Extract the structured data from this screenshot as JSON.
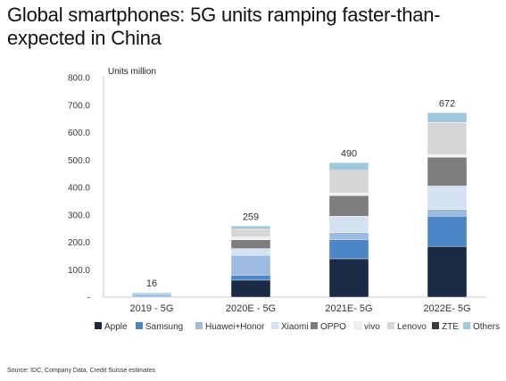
{
  "title": {
    "line1": "Global smartphones: 5G units ramping faster-than-",
    "line2": "expected in China"
  },
  "source": "Source: IDC, Company Data, Credit Suisse estimates",
  "chart_data": {
    "type": "bar",
    "stacked": true,
    "unit_label": "Units million",
    "categories": [
      "2019 - 5G",
      "2020E - 5G",
      "2021E- 5G",
      "2022E- 5G"
    ],
    "totals": [
      16,
      259,
      490,
      672
    ],
    "ylim": [
      0,
      800
    ],
    "yticks": [
      "-",
      "100.0",
      "200.0",
      "300.0",
      "400.0",
      "500.0",
      "600.0",
      "700.0",
      "800.0"
    ],
    "grid": false,
    "legend_position": "bottom",
    "series": [
      {
        "name": "Apple",
        "color": "#1c2b45",
        "values": [
          0,
          62,
          140,
          185
        ]
      },
      {
        "name": "Samsung",
        "color": "#4d86c6",
        "values": [
          0,
          18,
          70,
          110
        ]
      },
      {
        "name": "Huawei+Honor",
        "color": "#9dbbe0",
        "values": [
          10,
          72,
          25,
          25
        ]
      },
      {
        "name": "Xiaomi",
        "color": "#d3e2f2",
        "values": [
          0,
          25,
          60,
          85
        ]
      },
      {
        "name": "OPPO",
        "color": "#7d7d7d",
        "values": [
          0,
          32,
          75,
          105
        ]
      },
      {
        "name": "vivo",
        "color": "#f0f0f0",
        "values": [
          0,
          10,
          10,
          10
        ]
      },
      {
        "name": "Lenovo",
        "color": "#d6d6d6",
        "values": [
          0,
          28,
          80,
          115
        ]
      },
      {
        "name": "ZTE",
        "color": "#3a3a3a",
        "values": [
          0,
          2,
          2,
          2
        ]
      },
      {
        "name": "Others",
        "color": "#9fc8dc",
        "values": [
          6,
          10,
          28,
          35
        ]
      }
    ]
  }
}
